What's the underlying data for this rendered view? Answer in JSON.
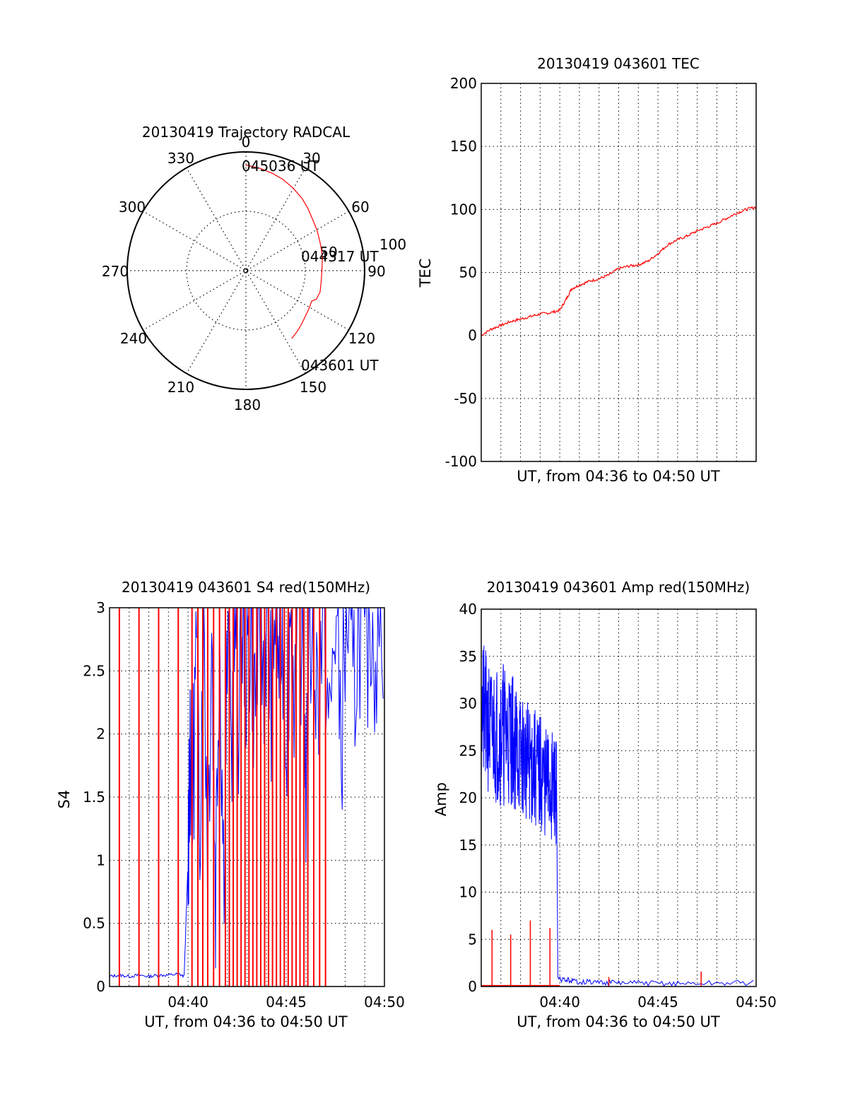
{
  "colors": {
    "red": "#ff0000",
    "blue": "#0000ff",
    "ink": "#000000",
    "grid": "#000000"
  },
  "chart_data": [
    {
      "type": "polar",
      "title": "20130419 Trajectory RADCAL",
      "angle_labels": [
        "0",
        "30",
        "60",
        "90",
        "120",
        "150",
        "180",
        "210",
        "240",
        "270",
        "300",
        "330"
      ],
      "radial_labels": [
        "50",
        "100"
      ],
      "rmax": 100,
      "time_labels": [
        "045036 UT",
        "044317 UT",
        "043601 UT"
      ],
      "series": [
        {
          "points": [
            {
              "az": 0,
              "r": 89
            },
            {
              "az": 8,
              "r": 87
            },
            {
              "az": 15,
              "r": 85
            },
            {
              "az": 22,
              "r": 83
            },
            {
              "az": 30,
              "r": 80
            },
            {
              "az": 38,
              "r": 77
            },
            {
              "az": 45,
              "r": 74
            },
            {
              "az": 52,
              "r": 71
            },
            {
              "az": 60,
              "r": 69
            },
            {
              "az": 68,
              "r": 67
            },
            {
              "az": 75,
              "r": 66
            },
            {
              "az": 82,
              "r": 65
            },
            {
              "az": 90,
              "r": 64
            },
            {
              "az": 98,
              "r": 64
            },
            {
              "az": 106,
              "r": 65
            },
            {
              "az": 112,
              "r": 64
            },
            {
              "az": 115,
              "r": 61
            },
            {
              "az": 121,
              "r": 62
            },
            {
              "az": 127,
              "r": 63
            },
            {
              "az": 134,
              "r": 65
            },
            {
              "az": 140,
              "r": 67
            },
            {
              "az": 146,
              "r": 69
            }
          ]
        }
      ]
    },
    {
      "type": "line",
      "title": "20130419 043601 TEC",
      "xlabel": "UT, from 04:36 to 04:50 UT",
      "ylabel": "TEC",
      "xlim": [
        0,
        14
      ],
      "ylim": [
        -100,
        200
      ],
      "yticks": [
        -100,
        -50,
        0,
        50,
        100,
        150,
        200
      ],
      "grid": true,
      "series": [
        {
          "points": [
            [
              0,
              0
            ],
            [
              0.5,
              5
            ],
            [
              1,
              8
            ],
            [
              1.5,
              11
            ],
            [
              2,
              13
            ],
            [
              2.5,
              15
            ],
            [
              3,
              17
            ],
            [
              3.5,
              18
            ],
            [
              4,
              20
            ],
            [
              4.3,
              28
            ],
            [
              4.6,
              37
            ],
            [
              5,
              40
            ],
            [
              5.5,
              43
            ],
            [
              6,
              45
            ],
            [
              6.5,
              48
            ],
            [
              7,
              53
            ],
            [
              7.5,
              55
            ],
            [
              8,
              56
            ],
            [
              8.5,
              59
            ],
            [
              9,
              65
            ],
            [
              9.5,
              72
            ],
            [
              10,
              76
            ],
            [
              10.5,
              79
            ],
            [
              11,
              83
            ],
            [
              11.5,
              86
            ],
            [
              12,
              89
            ],
            [
              12.5,
              93
            ],
            [
              13,
              97
            ],
            [
              13.5,
              100
            ],
            [
              14,
              102
            ]
          ]
        }
      ]
    },
    {
      "type": "line",
      "title": "20130419 043601 S4 red(150MHz)",
      "xlabel": "UT, from 04:36 to 04:50 UT",
      "ylabel": "S4",
      "xlim": [
        0,
        14
      ],
      "ylim": [
        0,
        3
      ],
      "yticks": [
        0,
        0.5,
        1,
        1.5,
        2,
        2.5,
        3
      ],
      "xticks": [
        "04:40",
        "04:45",
        "04:50"
      ],
      "xtick_values": [
        4,
        9,
        14
      ],
      "grid": true,
      "series": [
        {
          "points": [
            [
              0,
              0.08
            ],
            [
              0.5,
              0.09
            ],
            [
              1,
              0.08
            ],
            [
              1.5,
              0.09
            ],
            [
              2,
              0.08
            ],
            [
              2.5,
              0.09
            ],
            [
              3,
              0.09
            ],
            [
              3.5,
              0.1
            ],
            [
              3.8,
              0.08
            ],
            [
              4.0,
              1.0
            ],
            [
              4.1,
              2.1
            ],
            [
              4.2,
              1.3
            ],
            [
              4.4,
              2.6
            ],
            [
              4.6,
              1.5
            ],
            [
              4.8,
              3
            ],
            [
              5.0,
              1.1
            ],
            [
              5.2,
              2.9
            ],
            [
              5.4,
              0.8
            ],
            [
              5.6,
              3
            ],
            [
              5.8,
              1.0
            ],
            [
              6.0,
              2.6
            ],
            [
              6.2,
              1.8
            ],
            [
              6.4,
              3
            ],
            [
              6.6,
              2.1
            ],
            [
              6.8,
              3
            ],
            [
              7.0,
              2.4
            ],
            [
              7.2,
              3
            ],
            [
              7.4,
              2.2
            ],
            [
              7.6,
              3
            ],
            [
              7.8,
              2.5
            ],
            [
              8.0,
              3
            ],
            [
              8.2,
              2.3
            ],
            [
              8.4,
              3
            ],
            [
              8.6,
              2.6
            ],
            [
              8.8,
              3
            ],
            [
              9.0,
              2.1
            ],
            [
              9.2,
              3
            ],
            [
              9.5,
              2.2
            ],
            [
              9.8,
              3
            ],
            [
              10.0,
              1.6
            ],
            [
              10.3,
              3
            ],
            [
              10.6,
              2.3
            ],
            [
              10.9,
              3
            ],
            [
              11.2,
              1.9
            ],
            [
              11.5,
              3
            ],
            [
              11.8,
              2.0
            ],
            [
              12.1,
              3
            ],
            [
              12.4,
              2.2
            ],
            [
              12.7,
              3
            ],
            [
              13,
              2.5
            ],
            [
              13.3,
              3
            ],
            [
              13.6,
              2.7
            ],
            [
              14,
              3
            ]
          ]
        },
        {
          "spikes_x": [
            0.5,
            1.5,
            2.5,
            3.5,
            4.2,
            4.5,
            4.75,
            5.0,
            5.3,
            5.6,
            5.9,
            6.1,
            6.3,
            6.5,
            6.7,
            6.9,
            7.1,
            7.3,
            7.5,
            7.7,
            7.9,
            8.1,
            8.3,
            8.5,
            8.7,
            8.9,
            9.1,
            9.3,
            9.5,
            9.7,
            9.9,
            10.1,
            10.4,
            10.7,
            11.0
          ]
        }
      ]
    },
    {
      "type": "line",
      "title": "20130419 043601 Amp red(150MHz)",
      "xlabel": "UT, from 04:36 to 04:50 UT",
      "ylabel": "Amp",
      "xlim": [
        0,
        14
      ],
      "ylim": [
        0,
        40
      ],
      "yticks": [
        0,
        5,
        10,
        15,
        20,
        25,
        30,
        35,
        40
      ],
      "xticks": [
        "04:40",
        "04:45",
        "04:50"
      ],
      "xtick_values": [
        4,
        9,
        14
      ],
      "grid": true,
      "series": [
        {
          "bands": [
            [
              0,
              21,
              37
            ],
            [
              0.5,
              20,
              34
            ],
            [
              1,
              19,
              35
            ],
            [
              1.5,
              19,
              34
            ],
            [
              2,
              18,
              31
            ],
            [
              2.5,
              17,
              30
            ],
            [
              3,
              16,
              29
            ],
            [
              3.5,
              15,
              27
            ],
            [
              3.85,
              15,
              27
            ]
          ],
          "after": [
            [
              3.9,
              0.8
            ],
            [
              5,
              0.5
            ],
            [
              7,
              0.4
            ],
            [
              10,
              0.3
            ],
            [
              14,
              0.4
            ]
          ]
        },
        {
          "spikes": [
            [
              0.55,
              6
            ],
            [
              1.5,
              5.5
            ],
            [
              2.5,
              7
            ],
            [
              3.5,
              6.2
            ],
            [
              6.5,
              1
            ],
            [
              11.2,
              1.6
            ]
          ]
        }
      ]
    }
  ]
}
